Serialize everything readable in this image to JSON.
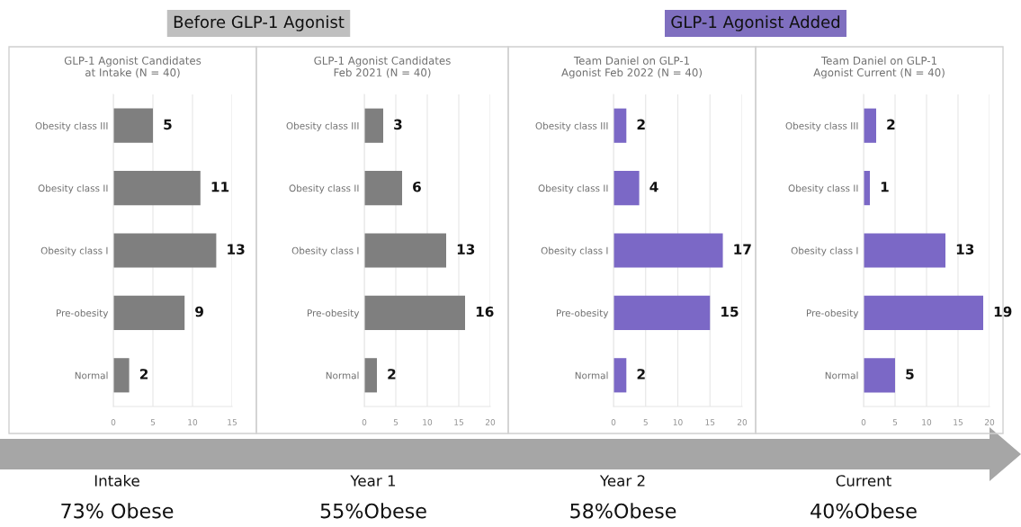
{
  "chart_data": [
    {
      "type": "bar",
      "orientation": "horizontal",
      "subtitle": "Before GLP-1 Agonist",
      "title": "GLP-1 Agonist Candidates\nat Intake (N = 40)",
      "categories": [
        "Obesity class III",
        "Obesity class II",
        "Obesity class I",
        "Pre-obesity",
        "Normal"
      ],
      "values": [
        5,
        11,
        13,
        9,
        2
      ],
      "color": "#7f7f7f",
      "xlim": [
        0,
        15
      ],
      "xticks": [
        0,
        5,
        10,
        15
      ],
      "grid": "x",
      "data_labels": true,
      "annotations": [
        "Intake",
        "73% Obese"
      ]
    },
    {
      "type": "bar",
      "orientation": "horizontal",
      "title": "GLP-1 Agonist Candidates\nFeb 2021 (N = 40)",
      "categories": [
        "Obesity class III",
        "Obesity class II",
        "Obesity class I",
        "Pre-obesity",
        "Normal"
      ],
      "values": [
        3,
        6,
        13,
        16,
        2
      ],
      "color": "#7f7f7f",
      "xlim": [
        0,
        20
      ],
      "xticks": [
        0,
        5,
        10,
        15,
        20
      ],
      "grid": "x",
      "data_labels": true,
      "annotations": [
        "Year 1",
        "55%Obese"
      ]
    },
    {
      "type": "bar",
      "orientation": "horizontal",
      "subtitle": "GLP-1 Agonist Added",
      "title": "Team Daniel on GLP-1\nAgonist Feb 2022 (N = 40)",
      "categories": [
        "Obesity class III",
        "Obesity class II",
        "Obesity class I",
        "Pre-obesity",
        "Normal"
      ],
      "values": [
        2,
        4,
        17,
        15,
        2
      ],
      "color": "#7b68c6",
      "xlim": [
        0,
        20
      ],
      "xticks": [
        0,
        5,
        10,
        15,
        20
      ],
      "grid": "x",
      "data_labels": true,
      "annotations": [
        "Year 2",
        "58%Obese"
      ]
    },
    {
      "type": "bar",
      "orientation": "horizontal",
      "title": "Team Daniel on GLP-1\nAgonist Current (N = 40)",
      "categories": [
        "Obesity class III",
        "Obesity class II",
        "Obesity class I",
        "Pre-obesity",
        "Normal"
      ],
      "values": [
        2,
        1,
        13,
        19,
        5
      ],
      "color": "#7b68c6",
      "xlim": [
        0,
        20
      ],
      "xticks": [
        0,
        5,
        10,
        15,
        20
      ],
      "grid": "x",
      "data_labels": true,
      "annotations": [
        "Current",
        "40%Obese"
      ]
    }
  ]
}
